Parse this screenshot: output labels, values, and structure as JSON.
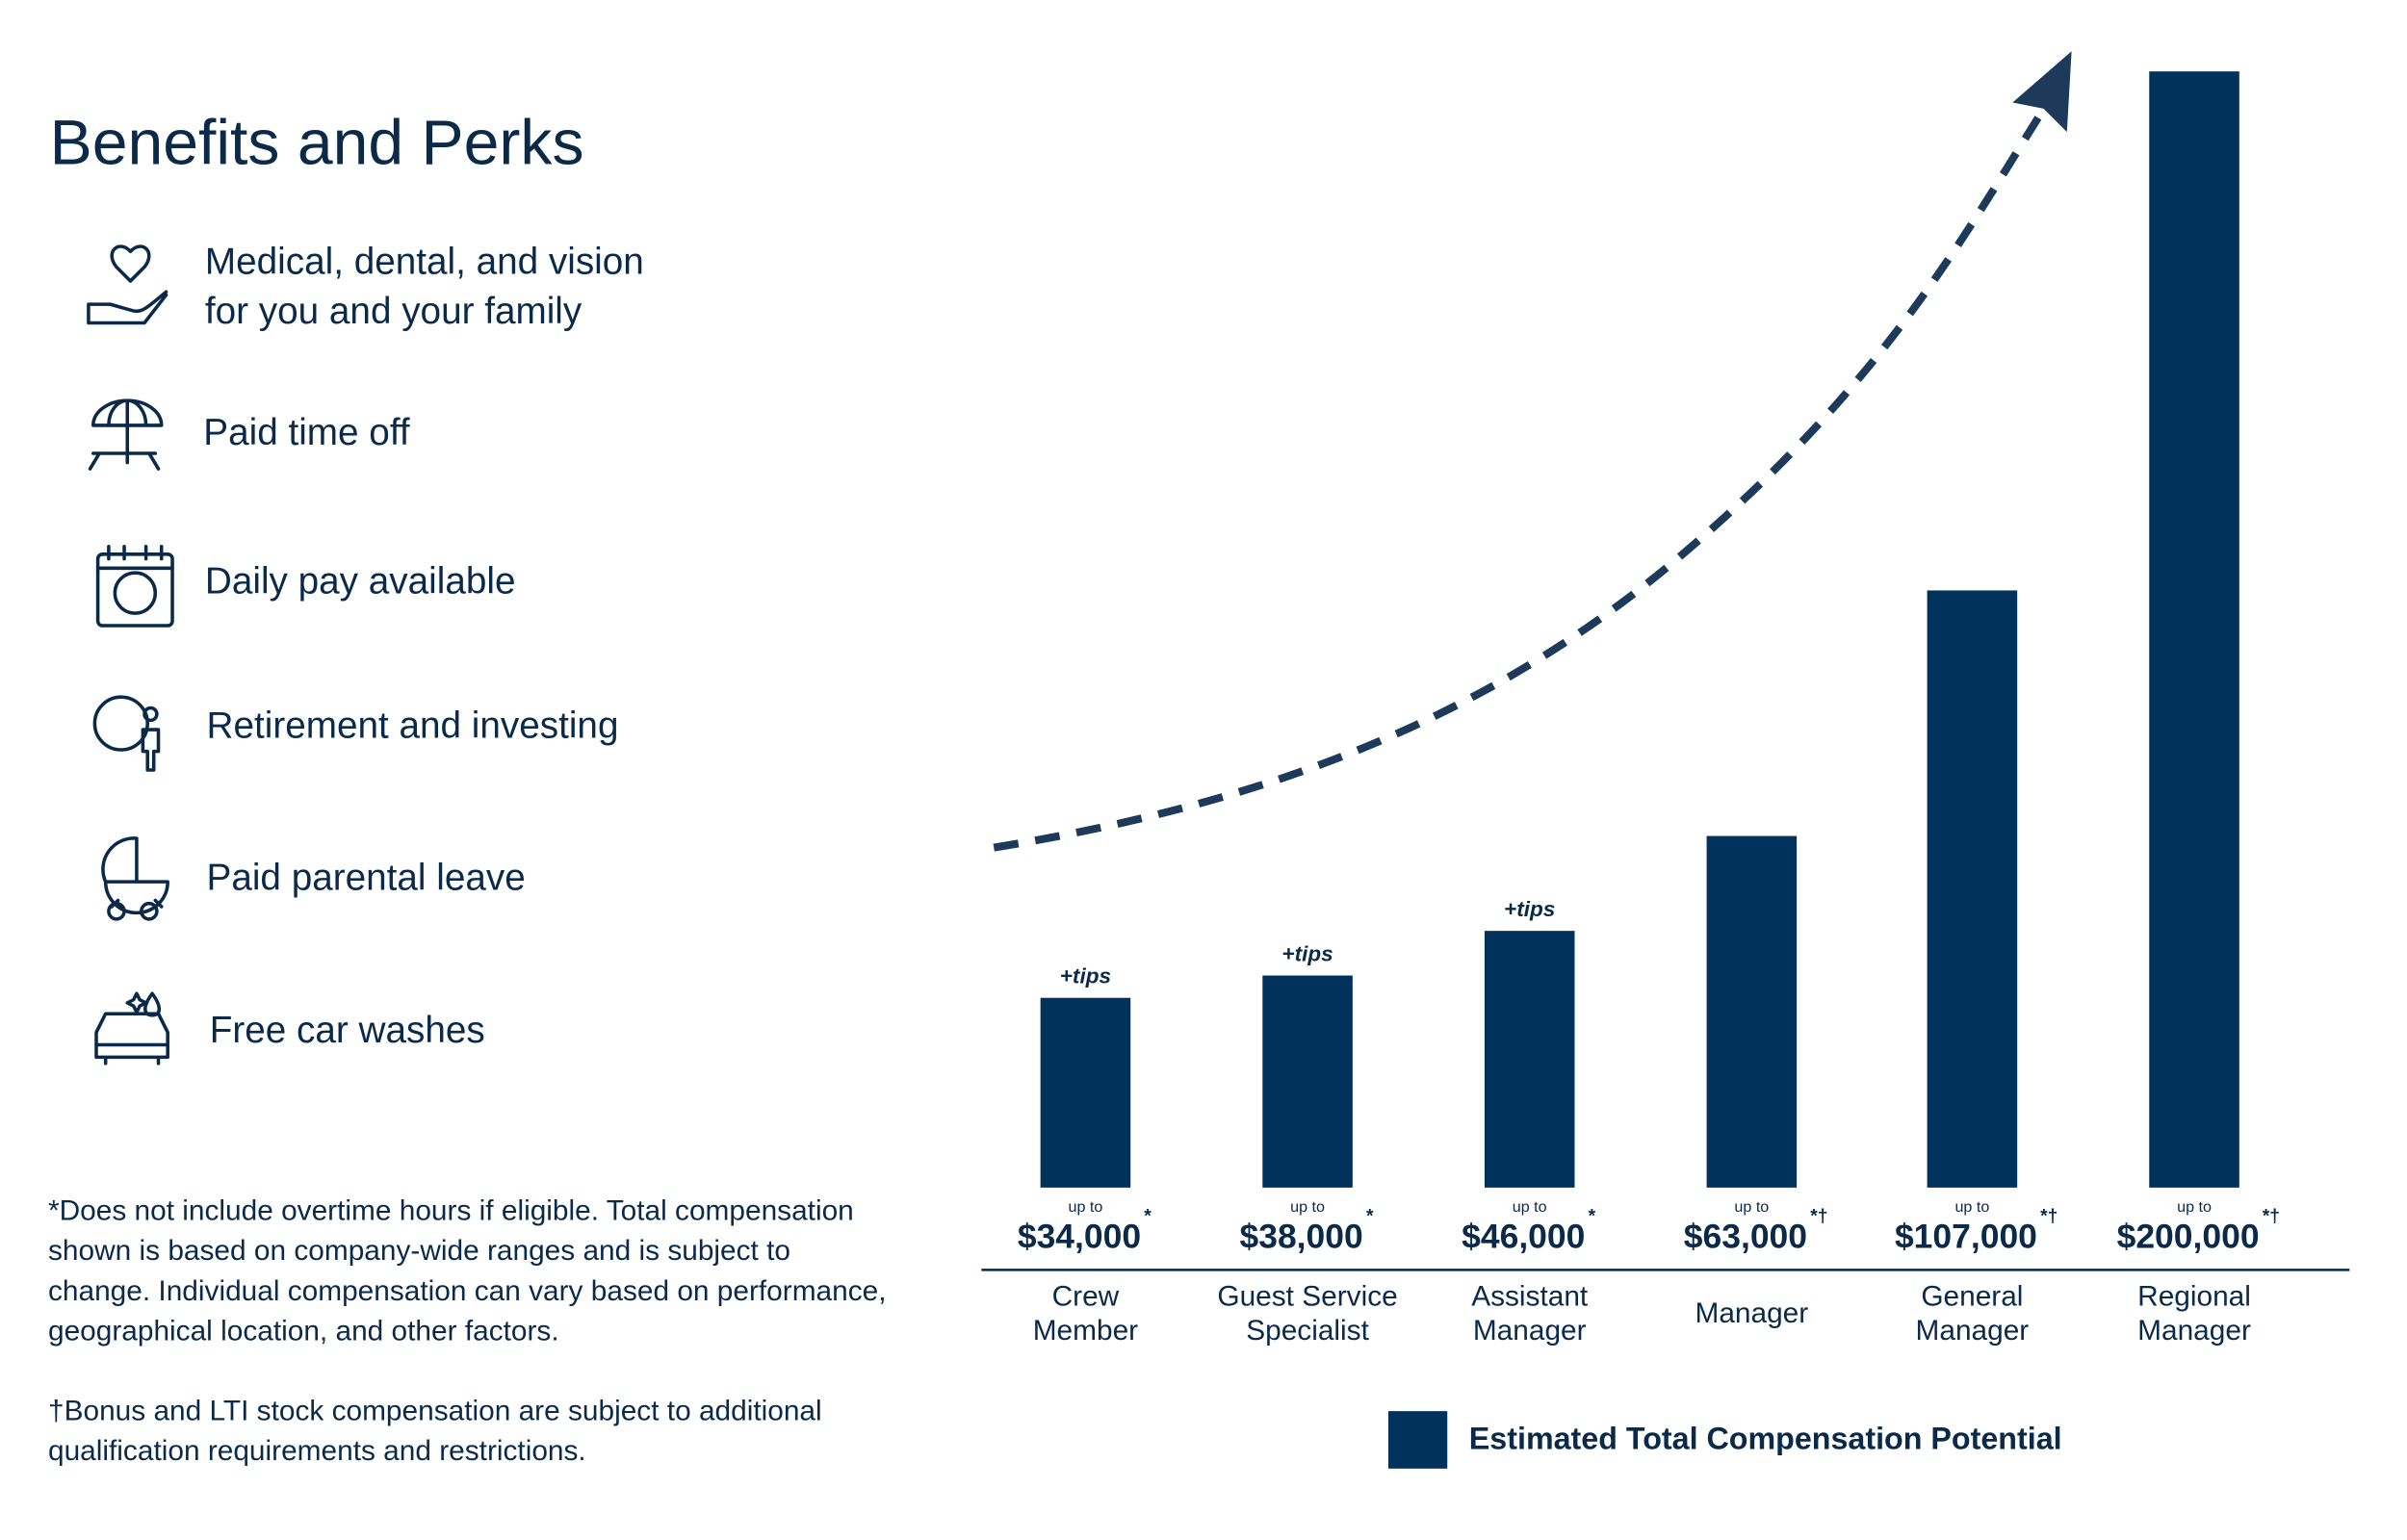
{
  "header": {
    "title": "Benefits and Perks"
  },
  "benefits": [
    {
      "lines": [
        "Medical, dental, and vision",
        "for you and your family"
      ]
    },
    {
      "lines": [
        "Paid time off"
      ]
    },
    {
      "lines": [
        "Daily pay available"
      ]
    },
    {
      "lines": [
        "Retirement and investing"
      ]
    },
    {
      "lines": [
        "Paid parental leave"
      ]
    },
    {
      "lines": [
        "Free car washes"
      ]
    }
  ],
  "footnotes": [
    {
      "lines": [
        "*Does not include overtime hours if eligible. Total compensation",
        "shown is based on company-wide ranges and is subject to",
        "change. Individual compensation can vary based on performance,",
        "geographical location, and other factors."
      ]
    },
    {
      "lines": [
        "†Bonus and LTI stock compensation are subject to additional",
        "qualification requirements and restrictions."
      ]
    }
  ],
  "chart_data": {
    "type": "bar",
    "categories": [
      "Crew Member",
      "Guest Service Specialist",
      "Assistant Manager",
      "Manager",
      "General Manager",
      "Regional Manager"
    ],
    "series": [
      {
        "name": "Estimated Total Compensation Potential",
        "color": "#00325b",
        "values": [
          34000,
          38000,
          46000,
          63000,
          107000,
          200000
        ],
        "value_labels": [
          "$34,000",
          "$38,000",
          "$46,000",
          "$63,000",
          "$107,000",
          "$200,000"
        ]
      }
    ],
    "value_prefix": "up to",
    "value_notes": [
      "*",
      "*",
      "*",
      "*†",
      "*†",
      "*†"
    ],
    "annotations": [
      "+tips",
      "+tips",
      "+tips",
      null,
      null,
      null
    ],
    "ylim": [
      0,
      200000
    ],
    "legend": "bottom"
  }
}
